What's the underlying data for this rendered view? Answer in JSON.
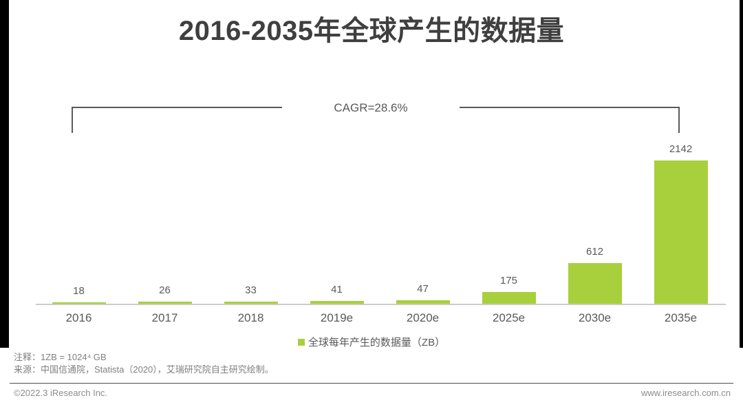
{
  "page": {
    "title": "2016-2035年全球产生的数据量",
    "cagr_label": "CAGR=28.6%",
    "notes": {
      "note": "注释：1ZB = 1024⁴ GB",
      "source": "来源：中国信通院，Statista（2020），艾瑞研究院自主研究绘制。"
    },
    "footer": {
      "left": "©2022.3 iResearch Inc.",
      "right": "www.iresearch.com.cn"
    }
  },
  "chart_data": {
    "type": "bar",
    "title": "2016-2035年全球产生的数据量",
    "categories": [
      "2016",
      "2017",
      "2018",
      "2019e",
      "2020e",
      "2025e",
      "2030e",
      "2035e"
    ],
    "values": [
      18,
      26,
      33,
      41,
      47,
      175,
      612,
      2142
    ],
    "series_name": "全球每年产生的数据量（ZB）",
    "unit": "ZB",
    "annotation": "CAGR=28.6%",
    "legend_position": "bottom",
    "grid": false,
    "ylim": [
      0,
      2200
    ],
    "bar_color": "#a8d03c",
    "data_labels": true
  },
  "colors": {
    "bar": "#a8d03c",
    "title_text": "#3f3f3f",
    "chart_text": "#595959",
    "axis_line": "#cbcbcb",
    "note_text": "#7f7f7f",
    "footer_text": "#8c8c8c"
  }
}
